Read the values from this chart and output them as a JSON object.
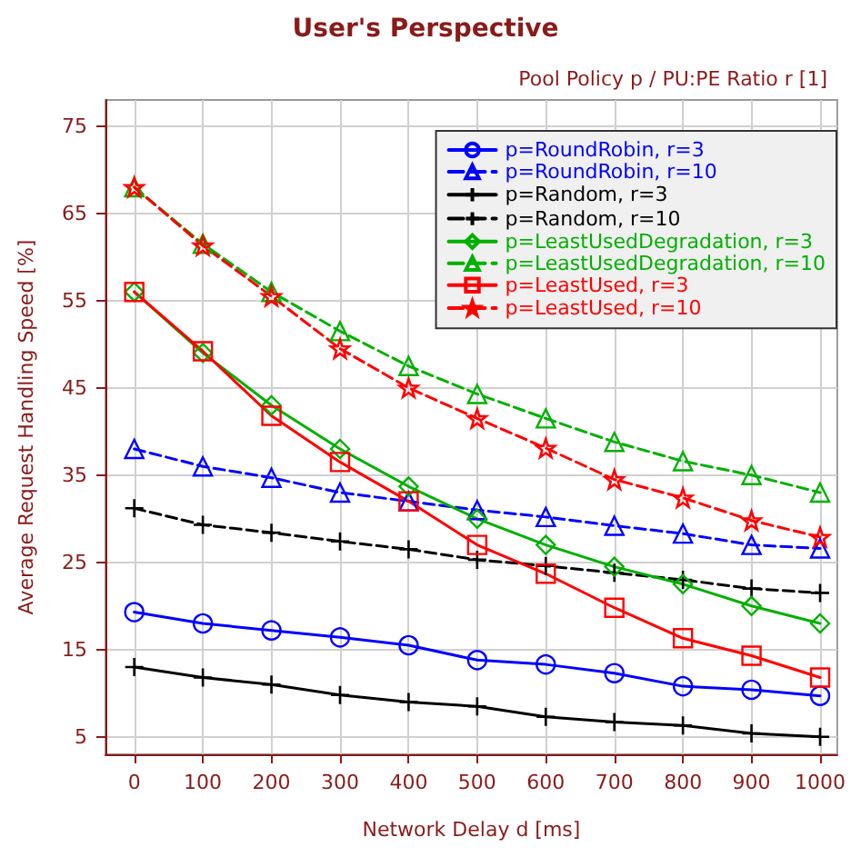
{
  "chart_data": {
    "type": "line",
    "title": "User's Perspective",
    "legend_title": "Pool Policy p / PU:PE Ratio r [1]",
    "xlabel": "Network Delay d [ms]",
    "ylabel": "Average Request Handling Speed [%]",
    "x": [
      0,
      100,
      200,
      300,
      400,
      500,
      600,
      700,
      800,
      900,
      1000
    ],
    "xlim": [
      -42,
      1025
    ],
    "xticks": [
      0,
      100,
      200,
      300,
      400,
      500,
      600,
      700,
      800,
      900,
      1000
    ],
    "ylim": [
      3,
      78
    ],
    "yticks": [
      5,
      15,
      25,
      35,
      45,
      55,
      65,
      75
    ],
    "grid": true,
    "legend": "top right",
    "series": [
      {
        "name": "p=RoundRobin, r=3",
        "color": "#0000ff",
        "marker": "circle",
        "line_style": "solid",
        "values": [
          19.3,
          18,
          17.2,
          16.4,
          15.5,
          13.8,
          13.3,
          12.3,
          10.8,
          10.4,
          9.7
        ]
      },
      {
        "name": "p=RoundRobin, r=10",
        "color": "#0000ff",
        "marker": "triangle",
        "line_style": "dashed",
        "values": [
          38,
          36,
          34.7,
          33,
          32,
          31,
          30.2,
          29.2,
          28.3,
          27,
          26.6
        ]
      },
      {
        "name": "p=Random, r=3",
        "color": "#000000",
        "marker": "cross",
        "line_style": "solid",
        "values": [
          13,
          11.8,
          11,
          9.8,
          9,
          8.5,
          7.3,
          6.7,
          6.3,
          5.4,
          5
        ]
      },
      {
        "name": "p=Random, r=10",
        "color": "#000000",
        "marker": "cross",
        "line_style": "dashed",
        "values": [
          31.2,
          29.3,
          28.4,
          27.4,
          26.5,
          25.3,
          24.6,
          23.8,
          23,
          22,
          21.5
        ]
      },
      {
        "name": "p=LeastUsedDegradation, r=3",
        "color": "#00b000",
        "marker": "diamond",
        "line_style": "solid",
        "values": [
          56,
          49,
          43,
          38,
          33.7,
          30,
          27,
          24.5,
          22.5,
          20,
          18
        ]
      },
      {
        "name": "p=LeastUsedDegradation, r=10",
        "color": "#00b000",
        "marker": "triangle",
        "line_style": "dashed",
        "values": [
          68,
          61.5,
          56,
          51.5,
          47.5,
          44.3,
          41.5,
          38.8,
          36.6,
          35,
          33
        ]
      },
      {
        "name": "p=LeastUsed, r=3",
        "color": "#ff0000",
        "marker": "square",
        "line_style": "solid",
        "values": [
          56,
          49.2,
          41.8,
          36.5,
          32,
          27,
          23.7,
          19.8,
          16.3,
          14.3,
          11.8
        ]
      },
      {
        "name": "p=LeastUsed, r=10",
        "color": "#ff0000",
        "marker": "star",
        "line_style": "dashed",
        "values": [
          68,
          61.3,
          55.5,
          49.5,
          45,
          41.5,
          38.1,
          34.5,
          32.4,
          29.8,
          27.9
        ]
      }
    ]
  }
}
